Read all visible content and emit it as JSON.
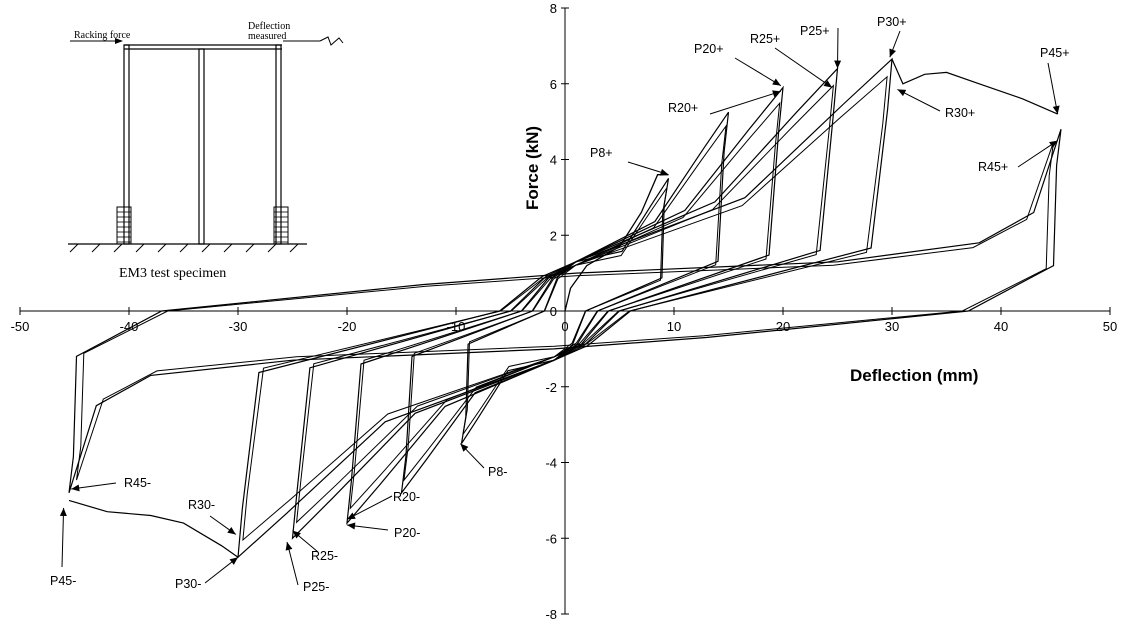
{
  "chart_data": {
    "type": "line",
    "title": "",
    "xlabel": "Deflection (mm)",
    "ylabel": "Force (kN)",
    "xlim": [
      -50,
      50
    ],
    "ylim": [
      -8,
      8
    ],
    "x_ticks": [
      "-50",
      "-40",
      "-30",
      "-20",
      "-10",
      "0",
      "10",
      "20",
      "30",
      "40",
      "50"
    ],
    "y_ticks": [
      "-8",
      "-6",
      "-4",
      "-2",
      "0",
      "2",
      "4",
      "6",
      "8"
    ],
    "grid": false,
    "legend": "none",
    "series": [
      {
        "values": [
          [
            0,
            0
          ],
          [
            0.5,
            0.6
          ],
          [
            2,
            1.2
          ],
          [
            5,
            1.7
          ],
          [
            7,
            2.6
          ],
          [
            8.5,
            3.6
          ],
          [
            9.5,
            3.6
          ]
        ]
      },
      {
        "peak": [
          9.5,
          3.5
        ],
        "valley": [
          -9.5,
          -3.5
        ]
      },
      {
        "peak": [
          15,
          5.25
        ],
        "valley": [
          -15,
          -4.8
        ]
      },
      {
        "peak": [
          20,
          5.9
        ],
        "valley": [
          -20,
          -5.6
        ]
      },
      {
        "peak": [
          25,
          6.4
        ],
        "valley": [
          -25,
          -6.0
        ]
      },
      {
        "peak": [
          30,
          6.65
        ],
        "valley": [
          -30,
          -6.5
        ]
      },
      {
        "peak": [
          45.5,
          4.8
        ],
        "valley": [
          -45.5,
          -4.8
        ]
      }
    ],
    "annotations": [
      {
        "text": "P8+",
        "point": [
          9.5,
          3.6
        ]
      },
      {
        "text": "R20+",
        "point": [
          19.8,
          5.8
        ]
      },
      {
        "text": "P20+",
        "point": [
          19.8,
          5.95
        ]
      },
      {
        "text": "R25+",
        "point": [
          24.5,
          5.9
        ]
      },
      {
        "text": "P25+",
        "point": [
          25.0,
          6.4
        ]
      },
      {
        "text": "P30+",
        "point": [
          29.8,
          6.7
        ]
      },
      {
        "text": "R30+",
        "point": [
          30.5,
          5.85
        ]
      },
      {
        "text": "P45+",
        "point": [
          45.2,
          5.2
        ]
      },
      {
        "text": "R45+",
        "point": [
          45.2,
          4.5
        ]
      },
      {
        "text": "P8-",
        "point": [
          -9.6,
          -3.5
        ]
      },
      {
        "text": "R20-",
        "point": [
          -20.0,
          -5.5
        ]
      },
      {
        "text": "P20-",
        "point": [
          -20.0,
          -5.65
        ]
      },
      {
        "text": "R25-",
        "point": [
          -25.0,
          -5.8
        ]
      },
      {
        "text": "P25-",
        "point": [
          -25.5,
          -6.1
        ]
      },
      {
        "text": "R30-",
        "point": [
          -30.2,
          -5.9
        ]
      },
      {
        "text": "P30-",
        "point": [
          -30.0,
          -6.5
        ]
      },
      {
        "text": "R45-",
        "point": [
          -45.3,
          -4.7
        ]
      },
      {
        "text": "P45-",
        "point": [
          -46.0,
          -5.2
        ]
      }
    ],
    "inset": {
      "caption": "EM3 test specimen",
      "left_label": "Racking force",
      "right_label_1": "Deflection",
      "right_label_2": "measured"
    }
  }
}
